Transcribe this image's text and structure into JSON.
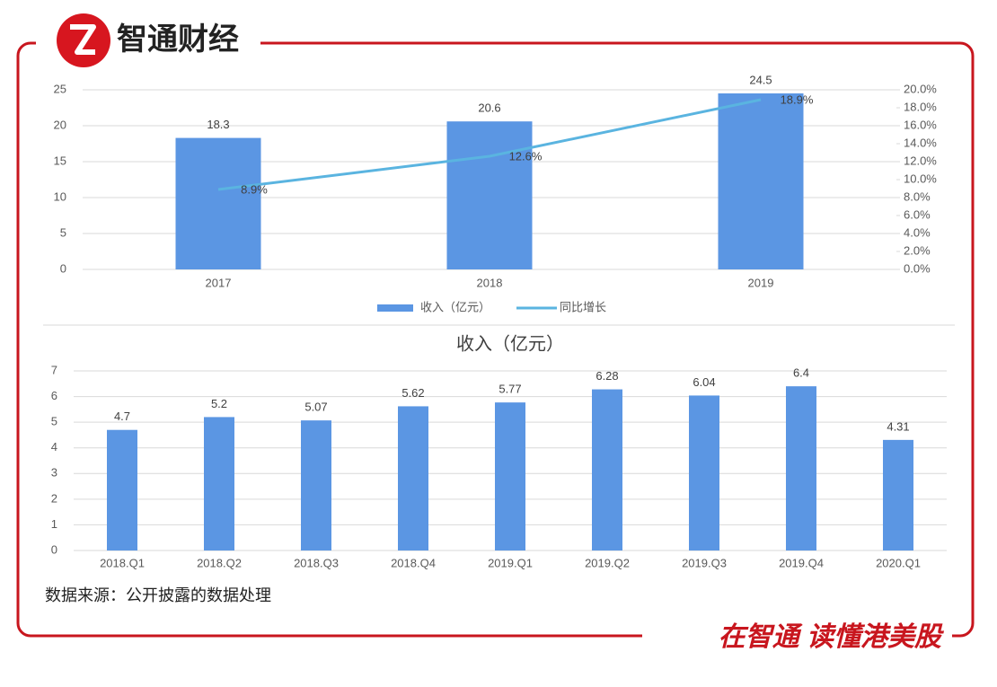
{
  "header": {
    "brand": "智通财经"
  },
  "chart_data": [
    {
      "type": "bar",
      "categories": [
        "2017",
        "2018",
        "2019"
      ],
      "series": [
        {
          "name": "收入（亿元）",
          "type": "bar",
          "color": "#5b96e3",
          "values": [
            18.3,
            20.6,
            24.5
          ]
        },
        {
          "name": "同比增长",
          "type": "line",
          "axis": "y2",
          "color": "#5ab4e0",
          "values": [
            8.9,
            12.6,
            18.9
          ],
          "value_labels": [
            "8.9%",
            "12.6%",
            "18.9%"
          ]
        }
      ],
      "ylim": [
        0,
        25
      ],
      "yticks": [
        0,
        5,
        10,
        15,
        20,
        25
      ],
      "y2lim": [
        0,
        20
      ],
      "y2ticks": [
        {
          "value": 0,
          "label": "0.0%"
        },
        {
          "value": 2,
          "label": "2.0%"
        },
        {
          "value": 4,
          "label": "4.0%"
        },
        {
          "value": 6,
          "label": "6.0%"
        },
        {
          "value": 8,
          "label": "8.0%"
        },
        {
          "value": 10,
          "label": "10.0%"
        },
        {
          "value": 12,
          "label": "12.0%"
        },
        {
          "value": 14,
          "label": "14.0%"
        },
        {
          "value": 16,
          "label": "16.0%"
        },
        {
          "value": 18,
          "label": "18.0%"
        },
        {
          "value": 20,
          "label": "20.0%"
        }
      ],
      "grid": true,
      "legend": "bottom"
    },
    {
      "type": "bar",
      "title": "收入（亿元）",
      "categories": [
        "2018.Q1",
        "2018.Q2",
        "2018.Q3",
        "2018.Q4",
        "2019.Q1",
        "2019.Q2",
        "2019.Q3",
        "2019.Q4",
        "2020.Q1"
      ],
      "values": [
        4.7,
        5.2,
        5.07,
        5.62,
        5.77,
        6.28,
        6.04,
        6.4,
        4.31
      ],
      "color": "#5b96e3",
      "ylim": [
        0,
        7
      ],
      "yticks": [
        0,
        1,
        2,
        3,
        4,
        5,
        6,
        7
      ],
      "grid": true
    }
  ],
  "source": "数据来源：公开披露的数据处理",
  "footer": {
    "slogan": "在智通 读懂港美股"
  }
}
